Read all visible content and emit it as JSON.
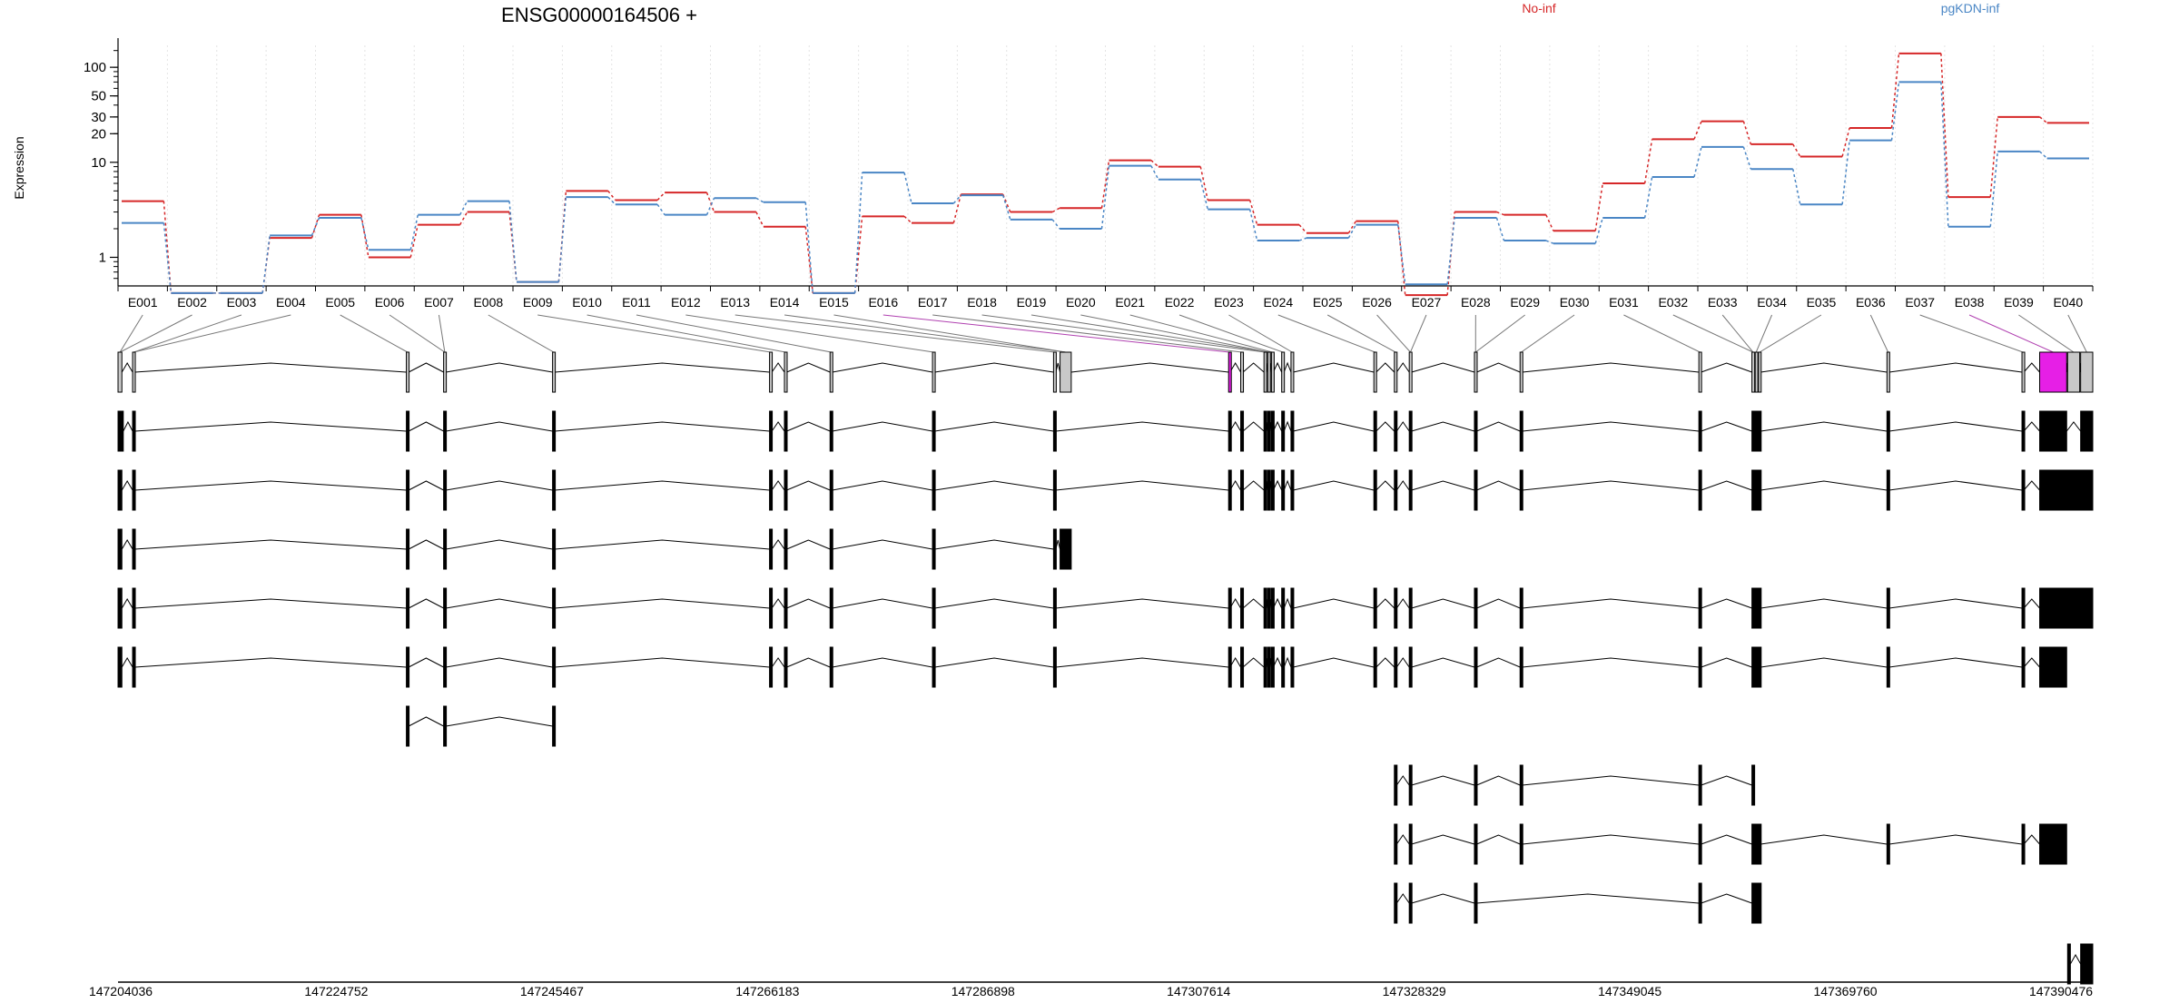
{
  "title": "ENSG00000164506 +",
  "ylabel": "Expression",
  "colors": {
    "no_inf": "#d62728",
    "pgkdn_inf": "#4a86c5",
    "exon_default": "#c8c8c8",
    "exon_highlight": "#e61fe6",
    "transcript_exon": "#000000"
  },
  "chart_data": {
    "type": "line",
    "title": "ENSG00000164506 +",
    "xlabel": "",
    "ylabel": "Expression",
    "yscale": "log",
    "ylim": [
      0.5,
      170
    ],
    "yticks": [
      1,
      10,
      20,
      30,
      50,
      100
    ],
    "grid": "vertical dotted",
    "legend": "top",
    "categories": [
      "E001",
      "E002",
      "E003",
      "E004",
      "E005",
      "E006",
      "E007",
      "E008",
      "E009",
      "E010",
      "E011",
      "E012",
      "E013",
      "E014",
      "E015",
      "E016",
      "E017",
      "E018",
      "E019",
      "E020",
      "E021",
      "E022",
      "E023",
      "E024",
      "E025",
      "E026",
      "E027",
      "E028",
      "E029",
      "E030",
      "E031",
      "E032",
      "E033",
      "E034",
      "E035",
      "E036",
      "E037",
      "E038",
      "E039",
      "E040"
    ],
    "series": [
      {
        "name": "No-inf",
        "color": "#d62728",
        "values": [
          3.9,
          0.42,
          0.42,
          1.6,
          2.8,
          1.0,
          2.2,
          3.0,
          0.55,
          5.0,
          4.0,
          4.8,
          3.0,
          2.1,
          0.42,
          2.7,
          2.3,
          4.6,
          3.0,
          3.3,
          10.5,
          9.0,
          4.0,
          2.2,
          1.8,
          2.4,
          0.4,
          3.0,
          2.8,
          1.9,
          6.0,
          17.5,
          27.0,
          15.5,
          11.5,
          23.0,
          140.0,
          4.3,
          30.0,
          26.0
        ]
      },
      {
        "name": "pgKDN-inf",
        "color": "#4a86c5",
        "values": [
          2.3,
          0.42,
          0.42,
          1.7,
          2.6,
          1.2,
          2.8,
          3.9,
          0.55,
          4.3,
          3.6,
          2.8,
          4.2,
          3.8,
          0.42,
          7.8,
          3.7,
          4.5,
          2.5,
          2.0,
          9.2,
          6.6,
          3.2,
          1.5,
          1.6,
          2.2,
          0.52,
          2.6,
          1.5,
          1.4,
          2.6,
          7.0,
          14.5,
          8.5,
          3.6,
          17.0,
          70.0,
          2.1,
          13.0,
          11.0
        ]
      }
    ],
    "genomic_ticks": [
      "147204036",
      "147224752",
      "147245467",
      "147266183",
      "147286898",
      "147307614",
      "147328329",
      "147349045",
      "147369760",
      "147390476"
    ]
  },
  "gene_model": {
    "exons": [
      {
        "start": 147204036,
        "end": 147204450,
        "highlight": false
      },
      {
        "start": 147205600,
        "end": 147205850,
        "highlight": false
      },
      {
        "start": 147235000,
        "end": 147235250,
        "highlight": false
      },
      {
        "start": 147239000,
        "end": 147239250,
        "highlight": false
      },
      {
        "start": 147250700,
        "end": 147250950,
        "highlight": false
      },
      {
        "start": 147274000,
        "end": 147274250,
        "highlight": false
      },
      {
        "start": 147275600,
        "end": 147275850,
        "highlight": false
      },
      {
        "start": 147280500,
        "end": 147280750,
        "highlight": false
      },
      {
        "start": 147291500,
        "end": 147291750,
        "highlight": false
      },
      {
        "start": 147304500,
        "end": 147304750,
        "highlight": false
      },
      {
        "start": 147305200,
        "end": 147306400,
        "highlight": false
      },
      {
        "start": 147323300,
        "end": 147323450,
        "highlight": true
      },
      {
        "start": 147324600,
        "end": 147324850,
        "highlight": false
      },
      {
        "start": 147327100,
        "end": 147327300,
        "highlight": false
      },
      {
        "start": 147327500,
        "end": 147327700,
        "highlight": false
      },
      {
        "start": 147327900,
        "end": 147328100,
        "highlight": false
      },
      {
        "start": 147329000,
        "end": 147329250,
        "highlight": false
      },
      {
        "start": 147330000,
        "end": 147330250,
        "highlight": false
      },
      {
        "start": 147338900,
        "end": 147339150,
        "highlight": false
      },
      {
        "start": 147341100,
        "end": 147341350,
        "highlight": false
      },
      {
        "start": 147342700,
        "end": 147342950,
        "highlight": false
      },
      {
        "start": 147349700,
        "end": 147349950,
        "highlight": false
      },
      {
        "start": 147354600,
        "end": 147354850,
        "highlight": false
      },
      {
        "start": 147373800,
        "end": 147374050,
        "highlight": false
      },
      {
        "start": 147379500,
        "end": 147379750,
        "highlight": false
      },
      {
        "start": 147379850,
        "end": 147380050,
        "highlight": false
      },
      {
        "start": 147380200,
        "end": 147380450,
        "highlight": false
      },
      {
        "start": 147394000,
        "end": 147394250,
        "highlight": false
      },
      {
        "start": 147408500,
        "end": 147408700,
        "highlight": false
      },
      {
        "start": 147410400,
        "end": 147413300,
        "highlight": true
      },
      {
        "start": 147413400,
        "end": 147414700,
        "highlight": false
      },
      {
        "start": 147414800,
        "end": 147416100,
        "highlight": false
      }
    ],
    "exon_bin_map": [
      0,
      0,
      1,
      1,
      2,
      3,
      3,
      4,
      5,
      6,
      7,
      8,
      9,
      10,
      10,
      11,
      12,
      13,
      14,
      14,
      15,
      16,
      17,
      18,
      19,
      20,
      20,
      21,
      21,
      22,
      23,
      24,
      24,
      25,
      26,
      27,
      28,
      29,
      30,
      31
    ],
    "transcripts": [
      {
        "exons": [
          [
            147204036,
            147204600
          ],
          [
            147205600,
            147205850
          ],
          [
            147235000,
            147235250
          ],
          [
            147239000,
            147239250
          ],
          [
            147250700,
            147250950
          ],
          [
            147274000,
            147274250
          ],
          [
            147275600,
            147275850
          ],
          [
            147280500,
            147280750
          ],
          [
            147291500,
            147291750
          ],
          [
            147304500,
            147304750
          ],
          [
            147323300,
            147323450
          ],
          [
            147324600,
            147324850
          ],
          [
            147327100,
            147327300
          ],
          [
            147327500,
            147327700
          ],
          [
            147327900,
            147328100
          ],
          [
            147329000,
            147329250
          ],
          [
            147330000,
            147330250
          ],
          [
            147338900,
            147339150
          ],
          [
            147341100,
            147341350
          ],
          [
            147342700,
            147342950
          ],
          [
            147349700,
            147349950
          ],
          [
            147354600,
            147354850
          ],
          [
            147373800,
            147374050
          ],
          [
            147379500,
            147379750
          ],
          [
            147379850,
            147380050
          ],
          [
            147380200,
            147380450
          ],
          [
            147394000,
            147394250
          ],
          [
            147408500,
            147408700
          ],
          [
            147410400,
            147413300
          ],
          [
            147414800,
            147416100
          ]
        ]
      },
      {
        "exons": [
          [
            147204036,
            147204450
          ],
          [
            147205600,
            147205850
          ],
          [
            147235000,
            147235250
          ],
          [
            147239000,
            147239250
          ],
          [
            147250700,
            147250950
          ],
          [
            147274000,
            147274250
          ],
          [
            147275600,
            147275850
          ],
          [
            147280500,
            147280750
          ],
          [
            147291500,
            147291750
          ],
          [
            147304500,
            147304750
          ],
          [
            147323300,
            147323450
          ],
          [
            147324600,
            147324850
          ],
          [
            147327100,
            147327300
          ],
          [
            147327500,
            147327700
          ],
          [
            147327900,
            147328100
          ],
          [
            147329000,
            147329250
          ],
          [
            147330000,
            147330250
          ],
          [
            147338900,
            147339150
          ],
          [
            147341100,
            147341350
          ],
          [
            147342700,
            147342950
          ],
          [
            147349700,
            147349950
          ],
          [
            147354600,
            147354850
          ],
          [
            147373800,
            147374050
          ],
          [
            147379500,
            147379750
          ],
          [
            147379850,
            147380050
          ],
          [
            147380200,
            147380450
          ],
          [
            147394000,
            147394250
          ],
          [
            147408500,
            147408700
          ],
          [
            147410400,
            147416100
          ]
        ]
      },
      {
        "exons": [
          [
            147204036,
            147204450
          ],
          [
            147205600,
            147205850
          ],
          [
            147235000,
            147235250
          ],
          [
            147239000,
            147239250
          ],
          [
            147250700,
            147250950
          ],
          [
            147274000,
            147274250
          ],
          [
            147275600,
            147275850
          ],
          [
            147280500,
            147280750
          ],
          [
            147291500,
            147291750
          ],
          [
            147304500,
            147304750
          ],
          [
            147305200,
            147306400
          ]
        ]
      },
      {
        "exons": [
          [
            147204036,
            147204450
          ],
          [
            147205600,
            147205850
          ],
          [
            147235000,
            147235250
          ],
          [
            147239000,
            147239250
          ],
          [
            147250700,
            147250950
          ],
          [
            147274000,
            147274250
          ],
          [
            147275600,
            147275850
          ],
          [
            147280500,
            147280750
          ],
          [
            147291500,
            147291750
          ],
          [
            147304500,
            147304750
          ],
          [
            147323300,
            147323450
          ],
          [
            147324600,
            147324850
          ],
          [
            147327100,
            147327300
          ],
          [
            147327500,
            147327700
          ],
          [
            147327900,
            147328100
          ],
          [
            147329000,
            147329250
          ],
          [
            147330000,
            147330250
          ],
          [
            147338900,
            147339150
          ],
          [
            147341100,
            147341350
          ],
          [
            147342700,
            147342950
          ],
          [
            147349700,
            147349950
          ],
          [
            147354600,
            147354850
          ],
          [
            147373800,
            147374050
          ],
          [
            147379500,
            147379750
          ],
          [
            147379850,
            147380050
          ],
          [
            147380200,
            147380450
          ],
          [
            147394000,
            147394250
          ],
          [
            147408500,
            147408700
          ],
          [
            147410400,
            147416100
          ]
        ]
      },
      {
        "exons": [
          [
            147204036,
            147204450
          ],
          [
            147205600,
            147205850
          ],
          [
            147235000,
            147235250
          ],
          [
            147239000,
            147239250
          ],
          [
            147250700,
            147250950
          ],
          [
            147274000,
            147274250
          ],
          [
            147275600,
            147275850
          ],
          [
            147280500,
            147280750
          ],
          [
            147291500,
            147291750
          ],
          [
            147304500,
            147304750
          ],
          [
            147323300,
            147323450
          ],
          [
            147324600,
            147324850
          ],
          [
            147327100,
            147327300
          ],
          [
            147327500,
            147327700
          ],
          [
            147327900,
            147328100
          ],
          [
            147329000,
            147329250
          ],
          [
            147330000,
            147330250
          ],
          [
            147338900,
            147339150
          ],
          [
            147341100,
            147341350
          ],
          [
            147342700,
            147342950
          ],
          [
            147349700,
            147349950
          ],
          [
            147354600,
            147354850
          ],
          [
            147373800,
            147374050
          ],
          [
            147379500,
            147379750
          ],
          [
            147379850,
            147380050
          ],
          [
            147380200,
            147380450
          ],
          [
            147394000,
            147394250
          ],
          [
            147408500,
            147408700
          ],
          [
            147410400,
            147413300
          ]
        ]
      },
      {
        "exons": [
          [
            147235000,
            147235250
          ],
          [
            147239000,
            147239250
          ],
          [
            147250700,
            147250950
          ]
        ]
      },
      {
        "exons": [
          [
            147341100,
            147341350
          ],
          [
            147342700,
            147342950
          ],
          [
            147349700,
            147349950
          ],
          [
            147354600,
            147354850
          ],
          [
            147373800,
            147374050
          ],
          [
            147379500,
            147379750
          ]
        ]
      },
      {
        "exons": [
          [
            147341100,
            147341350
          ],
          [
            147342700,
            147342950
          ],
          [
            147349700,
            147349950
          ],
          [
            147354600,
            147354850
          ],
          [
            147373800,
            147374050
          ],
          [
            147379500,
            147379750
          ],
          [
            147379850,
            147380050
          ],
          [
            147380200,
            147380450
          ],
          [
            147394000,
            147394250
          ],
          [
            147408500,
            147408700
          ],
          [
            147410400,
            147413300
          ]
        ]
      },
      {
        "exons": [
          [
            147341100,
            147341350
          ],
          [
            147342700,
            147342950
          ],
          [
            147349700,
            147349950
          ],
          [
            147373800,
            147374050
          ],
          [
            147379500,
            147379750
          ],
          [
            147379850,
            147380050
          ],
          [
            147380200,
            147380450
          ]
        ]
      },
      {
        "exons": [
          [
            147413400,
            147413700
          ],
          [
            147414800,
            147416100
          ]
        ]
      }
    ]
  }
}
